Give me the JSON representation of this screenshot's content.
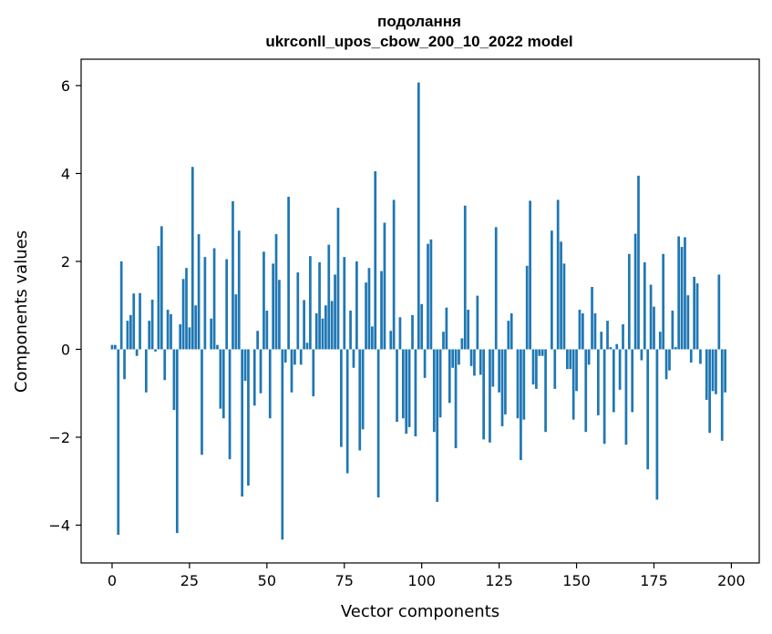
{
  "chart_data": {
    "type": "bar",
    "title": "подолання",
    "subtitle": "ukrconll_upos_cbow_200_10_2022 model",
    "xlabel": "Vector components",
    "ylabel": "Components values",
    "xlim": [
      -10,
      209
    ],
    "ylim": [
      -4.86,
      6.6
    ],
    "xticks": [
      0,
      25,
      50,
      75,
      100,
      125,
      150,
      175,
      200
    ],
    "yticks": [
      -4,
      -2,
      0,
      2,
      4,
      6
    ],
    "ytick_labels": [
      "−4",
      "−2",
      "0",
      "2",
      "4",
      "6"
    ],
    "grid": false,
    "bar_color": "#1f77b4",
    "values": [
      0.1,
      0.1,
      -4.22,
      2.0,
      -0.68,
      0.65,
      0.78,
      1.27,
      -0.15,
      1.28,
      0.0,
      -0.98,
      0.65,
      1.13,
      -0.05,
      2.35,
      2.8,
      -0.7,
      0.9,
      0.8,
      -1.38,
      -4.18,
      0.57,
      1.6,
      1.85,
      0.5,
      4.15,
      1.0,
      2.62,
      -2.4,
      2.1,
      0.0,
      0.7,
      2.3,
      0.1,
      -1.35,
      -1.57,
      2.05,
      -2.5,
      3.37,
      1.25,
      2.7,
      -3.35,
      -0.72,
      -3.1,
      0.0,
      -1.28,
      0.42,
      -1.0,
      2.22,
      0.88,
      -1.57,
      1.95,
      2.62,
      1.58,
      -4.33,
      -0.3,
      3.47,
      -0.98,
      -0.35,
      1.75,
      -0.35,
      1.12,
      0.15,
      2.12,
      -1.07,
      0.82,
      1.98,
      0.7,
      1.0,
      2.38,
      1.1,
      1.7,
      3.22,
      -2.22,
      2.1,
      -2.82,
      0.88,
      -0.42,
      2.0,
      -2.3,
      -1.82,
      1.52,
      1.85,
      0.52,
      4.05,
      -3.37,
      1.78,
      2.88,
      0.0,
      0.42,
      3.4,
      -1.65,
      0.73,
      -1.57,
      -1.92,
      -1.77,
      0.78,
      -1.98,
      6.07,
      1.03,
      -0.65,
      2.4,
      2.5,
      -1.88,
      -3.47,
      -1.55,
      0.4,
      0.95,
      -1.22,
      -0.42,
      -2.25,
      -0.35,
      0.25,
      3.27,
      0.9,
      -0.38,
      -0.6,
      1.22,
      -0.58,
      -2.05,
      0.0,
      -2.12,
      -0.85,
      2.78,
      -0.98,
      -1.75,
      -1.48,
      0.65,
      0.82,
      0.0,
      -1.57,
      -2.52,
      -1.6,
      1.9,
      3.38,
      -0.8,
      -0.9,
      -0.15,
      -0.15,
      -1.88,
      0.0,
      2.7,
      -0.9,
      3.4,
      2.45,
      1.95,
      -0.45,
      -0.45,
      -1.6,
      -0.95,
      0.9,
      0.82,
      -1.88,
      -0.35,
      1.42,
      0.82,
      -1.5,
      0.4,
      -2.15,
      0.65,
      0.05,
      -1.43,
      0.12,
      -0.92,
      0.57,
      -2.17,
      2.17,
      -1.43,
      2.63,
      3.95,
      -0.25,
      1.98,
      -2.73,
      1.47,
      0.97,
      -3.42,
      0.4,
      2.17,
      -0.68,
      -0.48,
      0.88,
      0.05,
      2.57,
      2.33,
      2.55,
      1.23,
      -0.3,
      1.65,
      1.5,
      -0.33,
      0.0,
      -1.15,
      -1.9,
      -0.95,
      -1.02,
      1.7,
      -2.08,
      -0.98
    ]
  }
}
